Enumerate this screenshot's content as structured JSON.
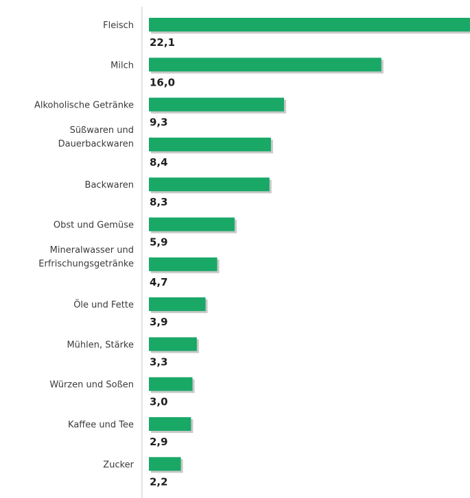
{
  "chart_data": {
    "type": "bar",
    "orientation": "horizontal",
    "title": "",
    "xlabel": "",
    "ylabel": "",
    "grid": false,
    "legend": "none",
    "bar_color": "#1aa867",
    "shadow_color": "#c9c9c9",
    "axis_color": "#c8c8c8",
    "xlim": [
      0,
      22.1
    ],
    "categories": [
      "Fleisch",
      "Milch",
      "Alkoholische Getränke",
      "Süßwaren und Dauerbackwaren",
      "Backwaren",
      "Obst und Gemüse",
      "Mineralwasser und Erfrischungsgetränke",
      "Öle und Fette",
      "Mühlen, Stärke",
      "Würzen und Soßen",
      "Kaffee und Tee",
      "Zucker"
    ],
    "category_lines": [
      [
        "Fleisch"
      ],
      [
        "Milch"
      ],
      [
        "Alkoholische Getränke"
      ],
      [
        "Süßwaren und",
        "Dauerbackwaren"
      ],
      [
        "Backwaren"
      ],
      [
        "Obst und Gemüse"
      ],
      [
        "Mineralwasser und",
        "Erfrischungsgetränke"
      ],
      [
        "Öle und Fette"
      ],
      [
        "Mühlen, Stärke"
      ],
      [
        "Würzen und Soßen"
      ],
      [
        "Kaffee und Tee"
      ],
      [
        "Zucker"
      ]
    ],
    "values": [
      22.1,
      16.0,
      9.3,
      8.4,
      8.3,
      5.9,
      4.7,
      3.9,
      3.3,
      3.0,
      2.9,
      2.2
    ],
    "value_labels": [
      "22,1",
      "16,0",
      "9,3",
      "8,4",
      "8,3",
      "5,9",
      "4,7",
      "3,9",
      "3,3",
      "3,0",
      "2,9",
      "2,2"
    ]
  }
}
